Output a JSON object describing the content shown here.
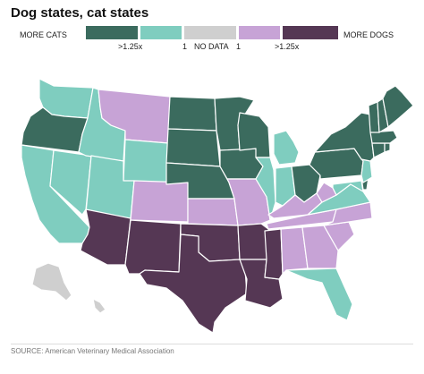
{
  "title": "Dog states, cat states",
  "legend": {
    "left_label": "MORE CATS",
    "right_label": "MORE DOGS",
    "ticks": [
      ">1.25x",
      "1",
      "NO DATA",
      "1",
      ">1.25x"
    ],
    "categories": [
      {
        "key": "cats_strong",
        "color": "#3b6b5e"
      },
      {
        "key": "cats",
        "color": "#7fcdbf"
      },
      {
        "key": "nodata",
        "color": "#cfcfcf"
      },
      {
        "key": "dogs",
        "color": "#c7a3d6"
      },
      {
        "key": "dogs_strong",
        "color": "#553754"
      }
    ]
  },
  "states": [
    {
      "abbr": "WA",
      "cat": "cats"
    },
    {
      "abbr": "OR",
      "cat": "cats_strong"
    },
    {
      "abbr": "CA",
      "cat": "cats"
    },
    {
      "abbr": "NV",
      "cat": "cats"
    },
    {
      "abbr": "ID",
      "cat": "cats"
    },
    {
      "abbr": "MT",
      "cat": "dogs"
    },
    {
      "abbr": "WY",
      "cat": "cats"
    },
    {
      "abbr": "UT",
      "cat": "cats"
    },
    {
      "abbr": "AZ",
      "cat": "dogs_strong"
    },
    {
      "abbr": "CO",
      "cat": "dogs"
    },
    {
      "abbr": "NM",
      "cat": "dogs_strong"
    },
    {
      "abbr": "ND",
      "cat": "cats_strong"
    },
    {
      "abbr": "SD",
      "cat": "cats_strong"
    },
    {
      "abbr": "NE",
      "cat": "cats_strong"
    },
    {
      "abbr": "KS",
      "cat": "dogs"
    },
    {
      "abbr": "OK",
      "cat": "dogs_strong"
    },
    {
      "abbr": "TX",
      "cat": "dogs_strong"
    },
    {
      "abbr": "MN",
      "cat": "cats_strong"
    },
    {
      "abbr": "IA",
      "cat": "cats_strong"
    },
    {
      "abbr": "MO",
      "cat": "dogs"
    },
    {
      "abbr": "AR",
      "cat": "dogs_strong"
    },
    {
      "abbr": "LA",
      "cat": "dogs_strong"
    },
    {
      "abbr": "WI",
      "cat": "cats_strong"
    },
    {
      "abbr": "IL",
      "cat": "cats"
    },
    {
      "abbr": "MI",
      "cat": "cats"
    },
    {
      "abbr": "IN",
      "cat": "cats"
    },
    {
      "abbr": "OH",
      "cat": "cats_strong"
    },
    {
      "abbr": "KY",
      "cat": "dogs"
    },
    {
      "abbr": "TN",
      "cat": "dogs"
    },
    {
      "abbr": "MS",
      "cat": "dogs_strong"
    },
    {
      "abbr": "AL",
      "cat": "dogs"
    },
    {
      "abbr": "GA",
      "cat": "dogs"
    },
    {
      "abbr": "FL",
      "cat": "cats"
    },
    {
      "abbr": "SC",
      "cat": "dogs"
    },
    {
      "abbr": "NC",
      "cat": "dogs"
    },
    {
      "abbr": "VA",
      "cat": "cats"
    },
    {
      "abbr": "WV",
      "cat": "dogs"
    },
    {
      "abbr": "MD",
      "cat": "cats"
    },
    {
      "abbr": "DE",
      "cat": "cats_strong"
    },
    {
      "abbr": "PA",
      "cat": "cats_strong"
    },
    {
      "abbr": "NJ",
      "cat": "cats"
    },
    {
      "abbr": "NY",
      "cat": "cats_strong"
    },
    {
      "abbr": "CT",
      "cat": "cats_strong"
    },
    {
      "abbr": "RI",
      "cat": "cats_strong"
    },
    {
      "abbr": "MA",
      "cat": "cats_strong"
    },
    {
      "abbr": "VT",
      "cat": "cats_strong"
    },
    {
      "abbr": "NH",
      "cat": "cats_strong"
    },
    {
      "abbr": "ME",
      "cat": "cats_strong"
    },
    {
      "abbr": "AK",
      "cat": "nodata"
    },
    {
      "abbr": "HI",
      "cat": "nodata"
    }
  ],
  "source": "SOURCE: American Veterinary Medical Association"
}
